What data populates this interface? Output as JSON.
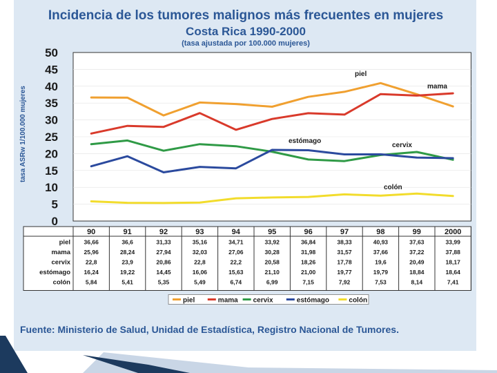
{
  "chart_data": {
    "type": "line",
    "title": "Incidencia de los tumores malignos más frecuentes en mujeres",
    "subtitle": "Costa Rica 1990-2000",
    "subtitle2": "(tasa ajustada por 100.000 mujeres)",
    "ylabel": "tasa ASRw 1/100.000 mujeres",
    "ylim": [
      0,
      50
    ],
    "yticks": [
      "0",
      "5",
      "10",
      "15",
      "20",
      "25",
      "30",
      "35",
      "40",
      "45",
      "50"
    ],
    "categories": [
      "90",
      "91",
      "92",
      "93",
      "94",
      "95",
      "96",
      "97",
      "98",
      "99",
      "2000"
    ],
    "series": [
      {
        "name": "piel",
        "color": "#f0a030",
        "values": [
          36.66,
          36.6,
          31.33,
          35.16,
          34.71,
          33.92,
          36.84,
          38.33,
          40.93,
          37.63,
          33.99
        ],
        "labels": [
          "36,66",
          "36,6",
          "31,33",
          "35,16",
          "34,71",
          "33,92",
          "36,84",
          "38,33",
          "40,93",
          "37,63",
          "33,99"
        ]
      },
      {
        "name": "mama",
        "color": "#d93a2b",
        "values": [
          25.96,
          28.24,
          27.94,
          32.03,
          27.06,
          30.28,
          31.98,
          31.57,
          37.66,
          37.22,
          37.88
        ],
        "labels": [
          "25,96",
          "28,24",
          "27,94",
          "32,03",
          "27,06",
          "30,28",
          "31,98",
          "31,57",
          "37,66",
          "37,22",
          "37,88"
        ]
      },
      {
        "name": "cervix",
        "color": "#2f9a46",
        "values": [
          22.8,
          23.9,
          20.86,
          22.8,
          22.2,
          20.58,
          18.26,
          17.78,
          19.6,
          20.49,
          18.17
        ],
        "labels": [
          "22,8",
          "23,9",
          "20,86",
          "22,8",
          "22,2",
          "20,58",
          "18,26",
          "17,78",
          "19,6",
          "20,49",
          "18,17"
        ]
      },
      {
        "name": "estómago",
        "color": "#2b4a9e",
        "values": [
          16.24,
          19.22,
          14.45,
          16.06,
          15.63,
          21.1,
          21.0,
          19.77,
          19.79,
          18.84,
          18.64
        ],
        "labels": [
          "16,24",
          "19,22",
          "14,45",
          "16,06",
          "15,63",
          "21,10",
          "21,00",
          "19,77",
          "19,79",
          "18,84",
          "18,64"
        ]
      },
      {
        "name": "colón",
        "color": "#f2dc2c",
        "values": [
          5.84,
          5.41,
          5.35,
          5.49,
          6.74,
          6.99,
          7.15,
          7.92,
          7.53,
          8.14,
          7.41
        ],
        "labels": [
          "5,84",
          "5,41",
          "5,35",
          "5,49",
          "6,74",
          "6,99",
          "7,15",
          "7,92",
          "7,53",
          "8,14",
          "7,41"
        ]
      }
    ],
    "annotations": {
      "piel": "piel",
      "mama": "mama",
      "cervix": "cervix",
      "estomago": "estómago",
      "colon": "colón"
    },
    "legend": [
      "piel",
      "mama",
      "cervix",
      "estómago",
      "colón"
    ],
    "legend_position": "bottom",
    "source": "Fuente: Ministerio de Salud, Unidad de Estadística, Registro Nacional de Tumores."
  }
}
